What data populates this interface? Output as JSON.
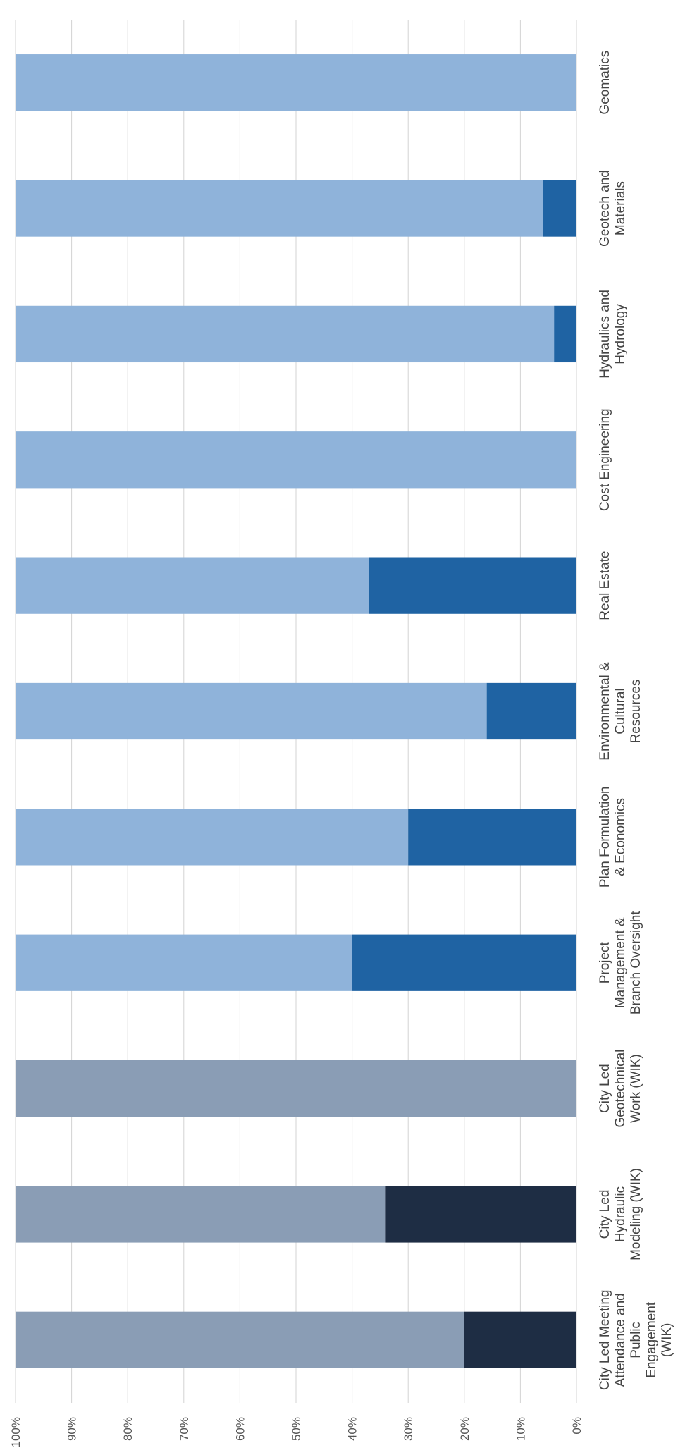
{
  "chart_data": {
    "type": "bar",
    "stacked": true,
    "percent_stacked": true,
    "orientation": "horizontal",
    "title": "",
    "xlabel": "",
    "ylabel": "",
    "ylim": [
      0,
      100
    ],
    "yticks": [
      "0%",
      "10%",
      "20%",
      "30%",
      "40%",
      "50%",
      "60%",
      "70%",
      "80%",
      "90%",
      "100%"
    ],
    "grid": true,
    "legend": "none",
    "categories": [
      [
        "City Led Meeting",
        "Attendance and",
        "Public",
        "Engagement",
        "(WIK)"
      ],
      [
        "City Led",
        "Hydraulic",
        "Modeling (WIK)"
      ],
      [
        "City Led",
        "Geotechnical",
        "Work (WIK)"
      ],
      [
        "Project",
        "Management &",
        "Branch Oversight"
      ],
      [
        "Plan Formulation",
        "& Economics"
      ],
      [
        "Environmental &",
        "Cultural",
        "Resources"
      ],
      [
        "Real Estate"
      ],
      [
        "Cost Engineering"
      ],
      [
        "Hydraulics and",
        "Hydrology"
      ],
      [
        "Geotech and",
        "Materials"
      ],
      [
        "Geomatics"
      ]
    ],
    "series": [
      {
        "values": [
          20,
          34,
          0,
          40,
          30,
          16,
          37,
          0,
          4,
          6,
          0
        ]
      },
      {
        "values": [
          80,
          66,
          100,
          60,
          70,
          84,
          63,
          100,
          96,
          94,
          100
        ]
      }
    ],
    "colors": {
      "wik_lower": "#1e2d44",
      "wik_upper": "#8a9db5",
      "other_lower": "#1f63a3",
      "other_upper": "#8fb3da",
      "grid": "#d3d3d3"
    }
  }
}
